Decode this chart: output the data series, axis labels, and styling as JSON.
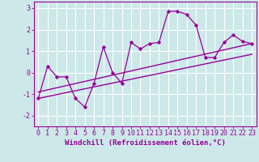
{
  "xlabel": "Windchill (Refroidissement éolien,°C)",
  "bg_color": "#cce8e8",
  "grid_color": "#ffffff",
  "line_color": "#990099",
  "marker_color": "#990099",
  "x_data": [
    0,
    1,
    2,
    3,
    4,
    5,
    6,
    7,
    8,
    9,
    10,
    11,
    12,
    13,
    14,
    15,
    16,
    17,
    18,
    19,
    20,
    21,
    22,
    23
  ],
  "y_data": [
    -1.2,
    0.3,
    -0.2,
    -0.2,
    -1.2,
    -1.6,
    -0.5,
    1.2,
    0.0,
    -0.5,
    1.4,
    1.1,
    1.35,
    1.4,
    2.85,
    2.85,
    2.7,
    2.2,
    0.7,
    0.7,
    1.4,
    1.75,
    1.45,
    1.35
  ],
  "trend1_x": [
    0,
    23
  ],
  "trend1_y": [
    -0.9,
    1.35
  ],
  "trend2_x": [
    0,
    23
  ],
  "trend2_y": [
    -1.2,
    0.85
  ],
  "xlim": [
    -0.5,
    23.5
  ],
  "ylim": [
    -2.5,
    3.3
  ],
  "yticks": [
    -2,
    -1,
    0,
    1,
    2,
    3
  ],
  "label_fontsize": 6.5,
  "tick_fontsize": 6.0
}
